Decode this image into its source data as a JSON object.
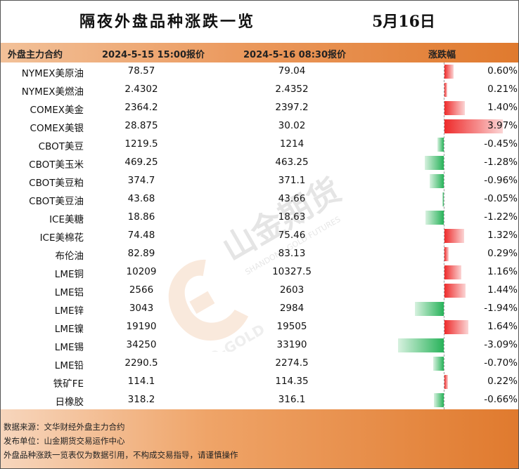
{
  "title": "隔夜外盘品种涨跌一览",
  "date": "5月16日",
  "headers": {
    "name": "外盘主力合约",
    "old": "2024-5-15 15:00报价",
    "new": "2024-5-16 08:30报价",
    "pct": "涨跌幅"
  },
  "rows": [
    {
      "name": "NYMEX美原油",
      "old": "78.57",
      "new": "79.04",
      "pct": "0.60%",
      "value": 0.6
    },
    {
      "name": "NYMEX美燃油",
      "old": "2.4302",
      "new": "2.4352",
      "pct": "0.21%",
      "value": 0.21
    },
    {
      "name": "COMEX美金",
      "old": "2364.2",
      "new": "2397.2",
      "pct": "1.40%",
      "value": 1.4
    },
    {
      "name": "COMEX美银",
      "old": "28.875",
      "new": "30.02",
      "pct": "3.97%",
      "value": 3.97
    },
    {
      "name": "CBOT美豆",
      "old": "1219.5",
      "new": "1214",
      "pct": "-0.45%",
      "value": -0.45
    },
    {
      "name": "CBOT美玉米",
      "old": "469.25",
      "new": "463.25",
      "pct": "-1.28%",
      "value": -1.28
    },
    {
      "name": "CBOT美豆粕",
      "old": "374.7",
      "new": "371.1",
      "pct": "-0.96%",
      "value": -0.96
    },
    {
      "name": "CBOT美豆油",
      "old": "43.68",
      "new": "43.66",
      "pct": "-0.05%",
      "value": -0.05
    },
    {
      "name": "ICE美糖",
      "old": "18.86",
      "new": "18.63",
      "pct": "-1.22%",
      "value": -1.22
    },
    {
      "name": "ICE美棉花",
      "old": "74.48",
      "new": "75.46",
      "pct": "1.32%",
      "value": 1.32
    },
    {
      "name": "布伦油",
      "old": "82.89",
      "new": "83.13",
      "pct": "0.29%",
      "value": 0.29
    },
    {
      "name": "LME铜",
      "old": "10209",
      "new": "10327.5",
      "pct": "1.16%",
      "value": 1.16
    },
    {
      "name": "LME铝",
      "old": "2566",
      "new": "2603",
      "pct": "1.44%",
      "value": 1.44
    },
    {
      "name": "LME锌",
      "old": "3043",
      "new": "2984",
      "pct": "-1.94%",
      "value": -1.94
    },
    {
      "name": "LME镍",
      "old": "19190",
      "new": "19505",
      "pct": "1.64%",
      "value": 1.64
    },
    {
      "name": "LME锡",
      "old": "34250",
      "new": "33190",
      "pct": "-3.09%",
      "value": -3.09
    },
    {
      "name": "LME铅",
      "old": "2290.5",
      "new": "2274.5",
      "pct": "-0.70%",
      "value": -0.7
    },
    {
      "name": "铁矿FE",
      "old": "114.1",
      "new": "114.35",
      "pct": "0.22%",
      "value": 0.22
    },
    {
      "name": "日橡胶",
      "old": "318.2",
      "new": "316.1",
      "pct": "-0.66%",
      "value": -0.66
    }
  ],
  "footer": {
    "source": "数据来源：文华财经外盘主力合约",
    "publisher": "发布单位：山金期货交易运作中心",
    "disclaimer": "外盘品种涨跌一览表仅为数据引用，不构成交易指导，请谨慎操作"
  },
  "watermark": {
    "brand": "山金期货",
    "english": "SHANDONG GOLD FUTURES",
    "logo_text": "SD-GOLD"
  },
  "colors": {
    "up": "#ee2b2b",
    "down": "#28b35a",
    "header_accent": "#e07a2e"
  }
}
